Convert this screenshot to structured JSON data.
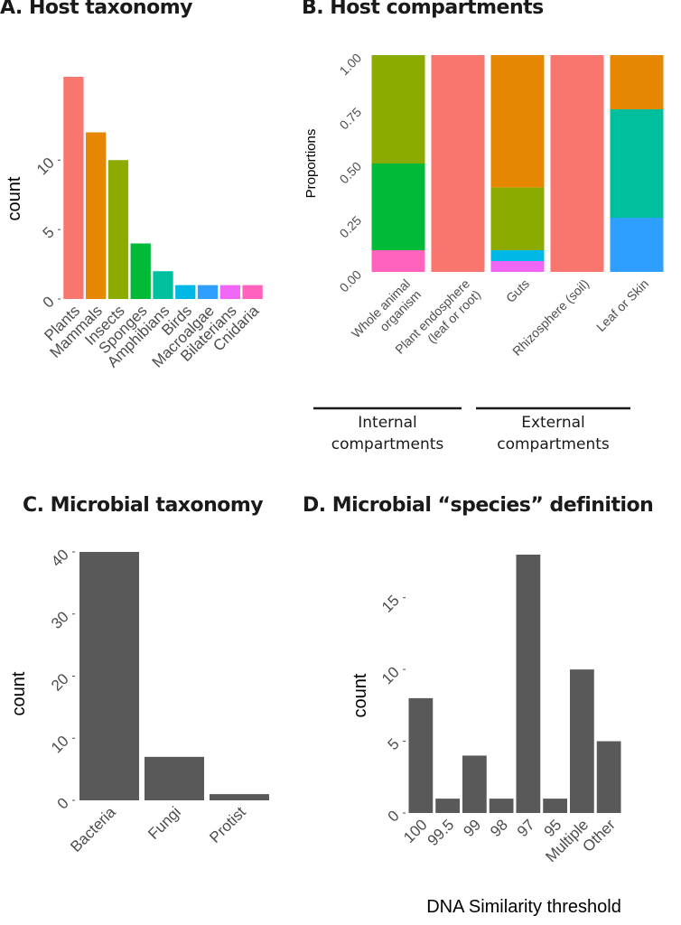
{
  "chart_data": [
    {
      "id": "A",
      "type": "bar",
      "title": "A. Host taxonomy",
      "xlabel": "",
      "ylabel": "count",
      "ylim": [
        0,
        16
      ],
      "yticks": [
        0,
        5,
        10
      ],
      "ytick_labels": [
        "0",
        "5",
        "10"
      ],
      "categories": [
        "Plants",
        "Mammals",
        "Insects",
        "Sponges",
        "Amphibians",
        "Birds",
        "Macroalgae",
        "Bilaterians",
        "Cnidaria"
      ],
      "values": [
        16,
        12,
        10,
        4,
        2,
        1,
        1,
        1,
        1
      ],
      "colors": [
        "#F8766D",
        "#E58700",
        "#8CAB00",
        "#00BA38",
        "#00BF9C",
        "#00B8E5",
        "#2E9FFF",
        "#F066F5",
        "#FF62BC"
      ],
      "grid": false
    },
    {
      "id": "B",
      "type": "bar",
      "stacked": true,
      "title": "B. Host compartments",
      "xlabel": "",
      "ylabel": "Proportions",
      "ylim": [
        0,
        1
      ],
      "yticks": [
        0,
        0.25,
        0.5,
        0.75,
        1
      ],
      "ytick_labels": [
        "0.00",
        "0.25",
        "0.50",
        "0.75",
        "1.00"
      ],
      "categories": [
        [
          "Whole animal",
          "organism"
        ],
        [
          "Plant endosphere",
          "(leaf or root)"
        ],
        [
          "Guts"
        ],
        [
          "Rhizosphere (soil)"
        ],
        [
          "Leaf or Skin"
        ]
      ],
      "stacks": [
        [
          {
            "host": "Cnidaria",
            "value": 0.1,
            "color": "#FF62BC"
          },
          {
            "host": "Sponges",
            "value": 0.4,
            "color": "#00BA38"
          },
          {
            "host": "Insects",
            "value": 0.5,
            "color": "#8CAB00"
          }
        ],
        [
          {
            "host": "Plants",
            "value": 1.0,
            "color": "#F8766D"
          }
        ],
        [
          {
            "host": "Bilaterians",
            "value": 0.05,
            "color": "#F066F5"
          },
          {
            "host": "Birds",
            "value": 0.05,
            "color": "#00B8E5"
          },
          {
            "host": "Insects",
            "value": 0.29,
            "color": "#8CAB00"
          },
          {
            "host": "Mammals",
            "value": 0.61,
            "color": "#E58700"
          }
        ],
        [
          {
            "host": "Plants",
            "value": 1.0,
            "color": "#F8766D"
          }
        ],
        [
          {
            "host": "Macroalgae",
            "value": 0.25,
            "color": "#2E9FFF"
          },
          {
            "host": "Amphibians",
            "value": 0.5,
            "color": "#00BF9C"
          },
          {
            "host": "Mammals",
            "value": 0.25,
            "color": "#E58700"
          }
        ]
      ],
      "groups": [
        {
          "label": [
            "Internal",
            "compartments"
          ],
          "categories": [
            0,
            1
          ]
        },
        {
          "label": [
            "External",
            "compartments"
          ],
          "categories": [
            2,
            3,
            4
          ]
        }
      ],
      "grid": false
    },
    {
      "id": "C",
      "type": "bar",
      "title": "C. Microbial taxonomy",
      "xlabel": "",
      "ylabel": "count",
      "ylim": [
        0,
        40
      ],
      "yticks": [
        0,
        10,
        20,
        30,
        40
      ],
      "ytick_labels": [
        "0",
        "10",
        "20",
        "30",
        "40"
      ],
      "categories": [
        "Bacteria",
        "Fungi",
        "Protist"
      ],
      "values": [
        40,
        7,
        1
      ],
      "color": "#595959",
      "grid": false
    },
    {
      "id": "D",
      "type": "bar",
      "title": "D. Microbial “species” definition",
      "xlabel": "DNA Similarity threshold",
      "ylabel": "count",
      "ylim": [
        0,
        18
      ],
      "yticks": [
        0,
        5,
        10,
        15
      ],
      "ytick_labels": [
        "0",
        "5",
        "10",
        "15"
      ],
      "categories": [
        "100",
        "99.5",
        "99",
        "98",
        "97",
        "95",
        "Multiple",
        "Other"
      ],
      "values": [
        8,
        1,
        4,
        1,
        18,
        1,
        10,
        5
      ],
      "color": "#595959",
      "grid": false
    }
  ]
}
